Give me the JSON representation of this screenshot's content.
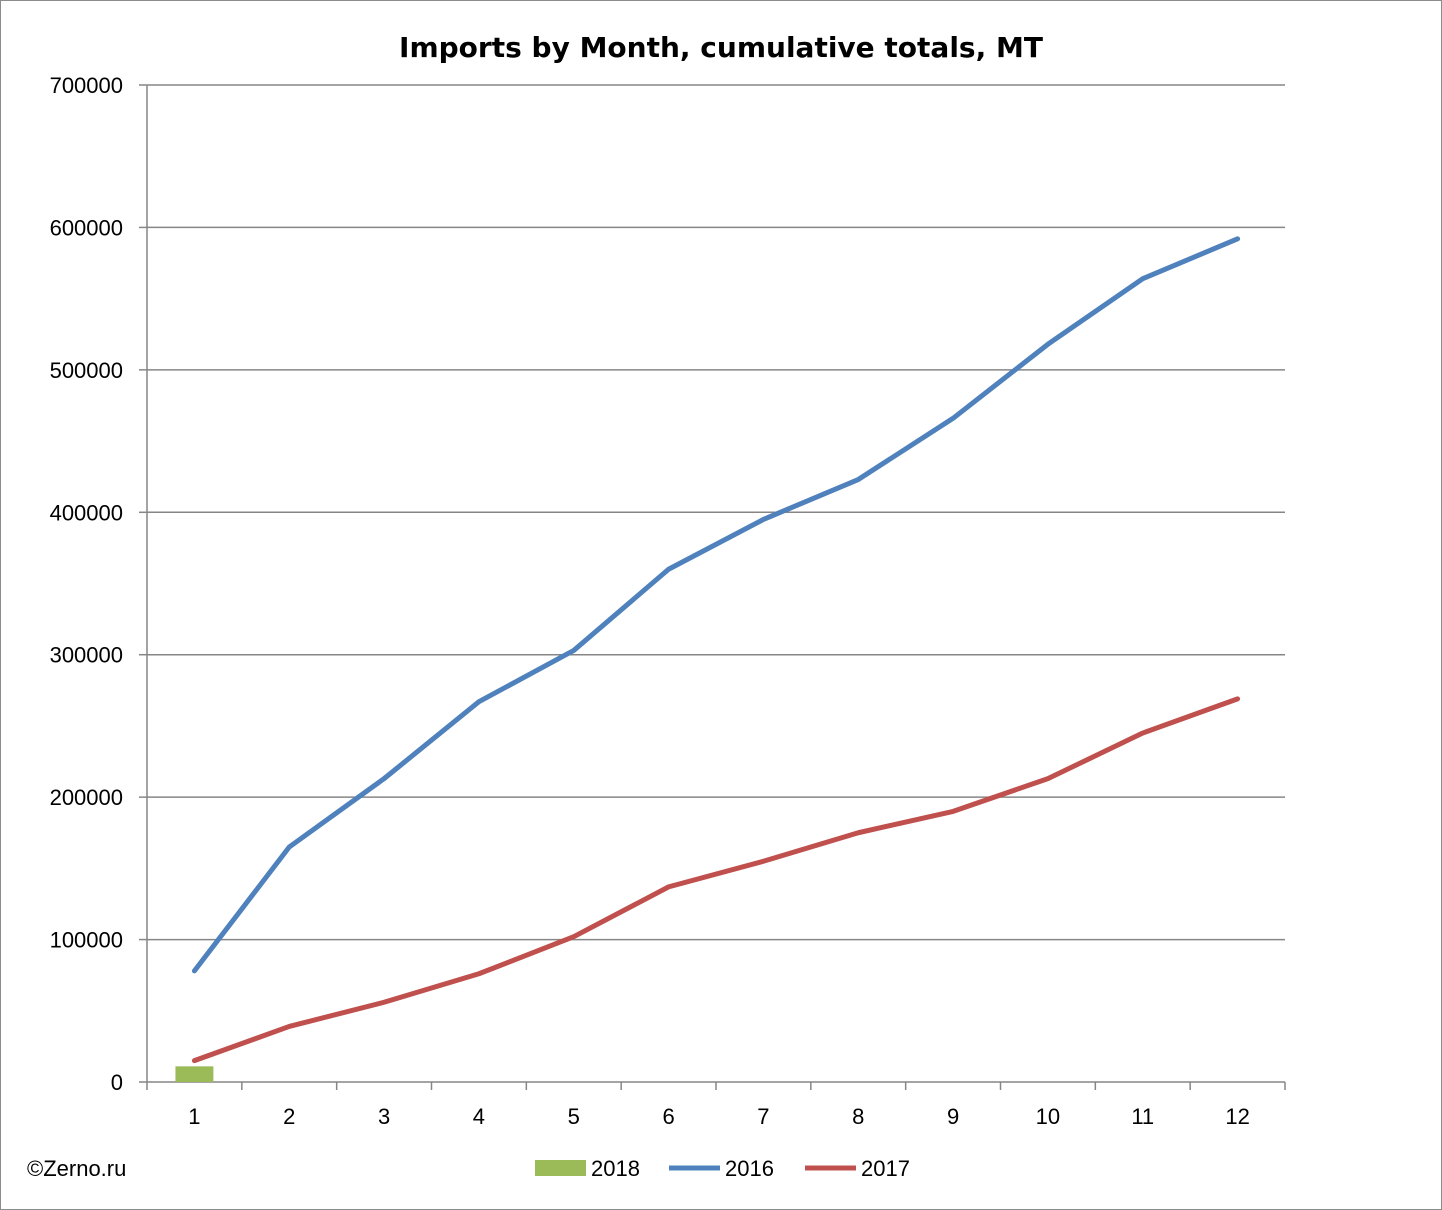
{
  "chart_data": {
    "type": "line",
    "title": "Imports by Month, cumulative totals, MT",
    "xlabel": "",
    "ylabel": "",
    "categories": [
      "1",
      "2",
      "3",
      "4",
      "5",
      "6",
      "7",
      "8",
      "9",
      "10",
      "11",
      "12"
    ],
    "ylim": [
      0,
      700000
    ],
    "yticks": [
      0,
      100000,
      200000,
      300000,
      400000,
      500000,
      600000,
      700000
    ],
    "grid": "horizontal",
    "legend_position": "bottom",
    "series": [
      {
        "name": "2018",
        "kind": "bar",
        "color": "#9bbb59",
        "values": [
          11000,
          null,
          null,
          null,
          null,
          null,
          null,
          null,
          null,
          null,
          null,
          null
        ]
      },
      {
        "name": "2016",
        "kind": "line",
        "color": "#4f81bd",
        "values": [
          78000,
          165000,
          213000,
          267000,
          303000,
          360000,
          395000,
          423000,
          466000,
          518000,
          564000,
          592000
        ]
      },
      {
        "name": "2017",
        "kind": "line",
        "color": "#c0504d",
        "values": [
          15000,
          39000,
          56000,
          76000,
          102000,
          137000,
          155000,
          175000,
          190000,
          213000,
          245000,
          269000
        ]
      }
    ]
  },
  "credit": "©Zerno.ru"
}
